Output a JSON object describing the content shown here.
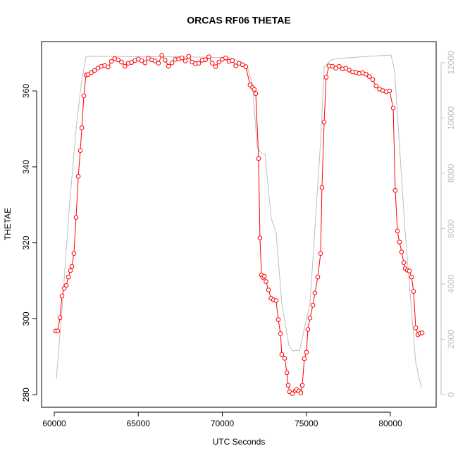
{
  "chart_data": {
    "type": "line",
    "title": "ORCAS RF06 THETAE",
    "x_label": "UTC Seconds",
    "y_label": "THETAE",
    "xlim": [
      59245,
      82725
    ],
    "xticks": [
      60000,
      65000,
      70000,
      75000,
      80000
    ],
    "ylim": [
      276.7,
      373
    ],
    "yticks": [
      280,
      300,
      320,
      340,
      360
    ],
    "y2lim": [
      -459,
      12764
    ],
    "y2ticks": [
      0,
      2000,
      4000,
      6000,
      8000,
      10000,
      12000
    ],
    "series": [
      {
        "color": "#ff0000",
        "markers": true,
        "x": [
          60080,
          60210,
          60340,
          60460,
          60590,
          60710,
          60840,
          60960,
          61050,
          61170,
          61300,
          61430,
          61550,
          61640,
          61760,
          61890,
          62000,
          62200,
          62400,
          62600,
          62800,
          63000,
          63200,
          63400,
          63600,
          63800,
          64000,
          64200,
          64400,
          64600,
          64800,
          65000,
          65200,
          65400,
          65600,
          65800,
          66000,
          66200,
          66400,
          66600,
          66800,
          67000,
          67200,
          67400,
          67600,
          67800,
          68000,
          68200,
          68400,
          68600,
          68800,
          69000,
          69200,
          69400,
          69600,
          69800,
          70000,
          70200,
          70400,
          70600,
          70800,
          71000,
          71200,
          71400,
          71650,
          71800,
          71900,
          71990,
          72160,
          72240,
          72330,
          72420,
          72500,
          72600,
          72750,
          72900,
          73050,
          73200,
          73330,
          73460,
          73540,
          73710,
          73840,
          73920,
          74000,
          74170,
          74340,
          74420,
          74550,
          74670,
          74760,
          74880,
          75010,
          75090,
          75220,
          75390,
          75510,
          75680,
          75850,
          75930,
          76060,
          76180,
          76350,
          76550,
          76750,
          76950,
          77150,
          77350,
          77550,
          77750,
          77950,
          78150,
          78350,
          78550,
          78750,
          78950,
          79150,
          79350,
          79550,
          79750,
          79950,
          80170,
          80290,
          80420,
          80540,
          80670,
          80800,
          80880,
          81010,
          81130,
          81260,
          81380,
          81510,
          81640,
          81760,
          81890
        ],
        "values": [
          296.8,
          296.8,
          300.3,
          306.0,
          308.0,
          308.8,
          311.0,
          312.7,
          313.8,
          317.2,
          326.7,
          337.5,
          344.3,
          350.3,
          358.7,
          364.2,
          364.3,
          364.8,
          365.4,
          366.0,
          366.5,
          366.7,
          366.3,
          367.8,
          368.5,
          368.2,
          367.6,
          366.5,
          367.3,
          367.5,
          368.0,
          368.4,
          368.0,
          367.4,
          368.6,
          368.2,
          367.9,
          367.3,
          369.4,
          368.1,
          366.5,
          367.4,
          368.3,
          368.4,
          368.7,
          367.9,
          369.1,
          367.6,
          367.2,
          367.3,
          368.1,
          368.2,
          369.0,
          367.3,
          366.4,
          367.6,
          368.3,
          368.7,
          367.8,
          368.0,
          366.6,
          367.3,
          366.9,
          366.4,
          361.6,
          360.9,
          360.4,
          359.3,
          342.2,
          321.3,
          311.5,
          310.9,
          311.2,
          309.8,
          307.6,
          305.4,
          305.0,
          304.8,
          299.8,
          296.1,
          290.6,
          289.6,
          285.8,
          282.5,
          280.8,
          280.3,
          281.0,
          281.4,
          281.0,
          280.5,
          282.5,
          289.5,
          291.2,
          297.2,
          300.2,
          303.6,
          306.8,
          311.0,
          317.2,
          334.6,
          351.8,
          363.6,
          366.6,
          366.5,
          366.0,
          366.5,
          365.8,
          366.0,
          365.5,
          365.0,
          364.9,
          364.6,
          364.8,
          364.4,
          363.8,
          363.0,
          361.3,
          360.5,
          360.1,
          359.8,
          360.0,
          355.5,
          333.8,
          323.1,
          320.2,
          317.6,
          314.8,
          313.2,
          312.8,
          312.6,
          311.0,
          307.2,
          297.6,
          295.8,
          296.2,
          296.3
        ]
      },
      {
        "color": "#bebebe",
        "axis": "y2",
        "markers": false,
        "x": [
          60125,
          60500,
          60900,
          61300,
          61600,
          61890,
          62500,
          65000,
          68000,
          70500,
          71200,
          71500,
          71800,
          72075,
          72370,
          72540,
          72910,
          73200,
          73540,
          73960,
          74170,
          74600,
          75220,
          75850,
          76060,
          76480,
          76810,
          78000,
          80040,
          80250,
          80880,
          81510,
          81840
        ],
        "values": [
          560,
          3400,
          6800,
          9600,
          11200,
          12230,
          12230,
          12220,
          12210,
          12180,
          12000,
          11820,
          11200,
          8920,
          8710,
          8710,
          6370,
          5860,
          3310,
          1780,
          1580,
          1600,
          3310,
          9170,
          11850,
          12100,
          12150,
          12200,
          12280,
          11720,
          5860,
          1150,
          250
        ]
      }
    ]
  }
}
